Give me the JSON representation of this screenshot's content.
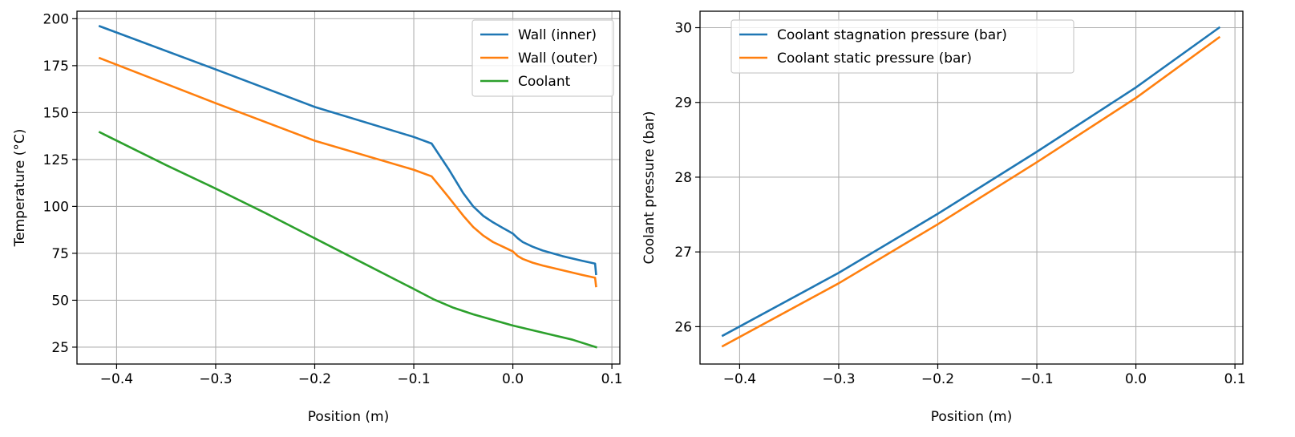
{
  "chart_data": [
    {
      "type": "line",
      "title": "",
      "xlabel": "Position (m)",
      "ylabel": "Temperature (°C)",
      "xlim": [
        -0.44,
        0.108
      ],
      "ylim": [
        16,
        204
      ],
      "xticks": [
        -0.4,
        -0.3,
        -0.2,
        -0.1,
        0.0,
        0.1
      ],
      "xtick_labels": [
        "−0.4",
        "−0.3",
        "−0.2",
        "−0.1",
        "0.0",
        "0.1"
      ],
      "yticks": [
        25,
        50,
        75,
        100,
        125,
        150,
        175,
        200
      ],
      "ytick_labels": [
        "25",
        "50",
        "75",
        "100",
        "125",
        "150",
        "175",
        "200"
      ],
      "grid": true,
      "legend_position": "top-right",
      "series": [
        {
          "name": "Wall (inner)",
          "color": "#1f77b4",
          "x": [
            -0.417,
            -0.3,
            -0.2,
            -0.1,
            -0.082,
            -0.065,
            -0.05,
            -0.04,
            -0.03,
            -0.02,
            -0.01,
            0.0,
            0.005,
            0.01,
            0.02,
            0.03,
            0.05,
            0.07,
            0.083,
            0.084
          ],
          "y": [
            196,
            173,
            153,
            137,
            133.5,
            120,
            107,
            100,
            95,
            91.5,
            88.5,
            85.5,
            83,
            81,
            78.5,
            76.5,
            73.5,
            71,
            69.5,
            64
          ]
        },
        {
          "name": "Wall (outer)",
          "color": "#ff7f0e",
          "x": [
            -0.417,
            -0.3,
            -0.2,
            -0.1,
            -0.082,
            -0.065,
            -0.05,
            -0.04,
            -0.03,
            -0.02,
            -0.01,
            0.0,
            0.005,
            0.01,
            0.02,
            0.03,
            0.05,
            0.07,
            0.083,
            0.084
          ],
          "y": [
            179,
            155,
            135,
            119.5,
            116,
            105,
            95,
            89,
            84.5,
            81,
            78.5,
            76,
            73.5,
            72,
            70,
            68.5,
            66,
            63.5,
            62,
            57.5
          ]
        },
        {
          "name": "Coolant",
          "color": "#2ca02c",
          "x": [
            -0.417,
            -0.35,
            -0.3,
            -0.25,
            -0.2,
            -0.15,
            -0.1,
            -0.08,
            -0.06,
            -0.04,
            -0.02,
            0.0,
            0.02,
            0.04,
            0.06,
            0.084
          ],
          "y": [
            139.5,
            122,
            109.5,
            96.5,
            83,
            69.5,
            56,
            50.5,
            46,
            42.5,
            39.5,
            36.5,
            34,
            31.5,
            29,
            25
          ]
        }
      ]
    },
    {
      "type": "line",
      "title": "",
      "xlabel": "Position (m)",
      "ylabel": "Coolant pressure (bar)",
      "xlim": [
        -0.44,
        0.108
      ],
      "ylim": [
        25.5,
        30.22
      ],
      "xticks": [
        -0.4,
        -0.3,
        -0.2,
        -0.1,
        0.0,
        0.1
      ],
      "xtick_labels": [
        "−0.4",
        "−0.3",
        "−0.2",
        "−0.1",
        "0.0",
        "0.1"
      ],
      "yticks": [
        26,
        27,
        28,
        29,
        30
      ],
      "ytick_labels": [
        "26",
        "27",
        "28",
        "29",
        "30"
      ],
      "grid": true,
      "legend_position": "top-left",
      "series": [
        {
          "name": "Coolant stagnation pressure (bar)",
          "color": "#1f77b4",
          "x": [
            -0.417,
            -0.3,
            -0.2,
            -0.1,
            0.0,
            0.084
          ],
          "y": [
            25.88,
            26.72,
            27.51,
            28.34,
            29.2,
            30.0
          ]
        },
        {
          "name": "Coolant static pressure (bar)",
          "color": "#ff7f0e",
          "x": [
            -0.417,
            -0.3,
            -0.2,
            -0.1,
            0.0,
            0.084
          ],
          "y": [
            25.74,
            26.58,
            27.37,
            28.2,
            29.06,
            29.87
          ]
        }
      ]
    }
  ]
}
